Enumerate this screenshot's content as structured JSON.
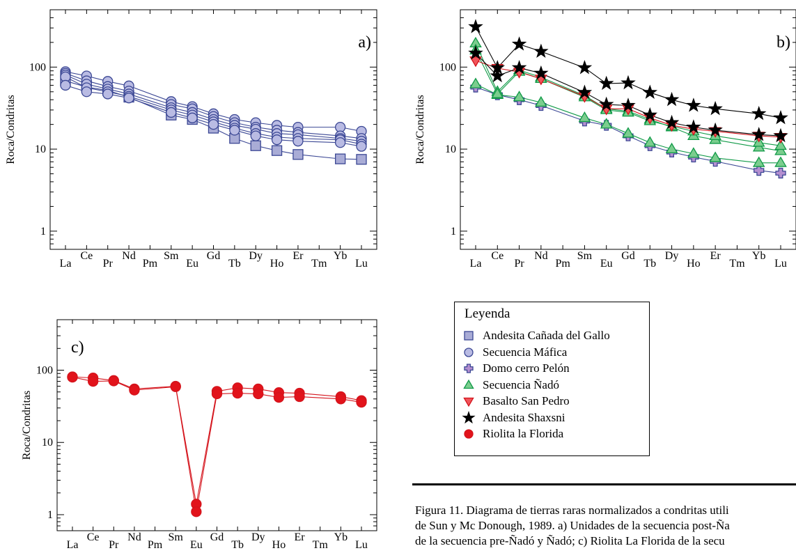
{
  "elements": [
    "La",
    "Ce",
    "Pr",
    "Nd",
    "Pm",
    "Sm",
    "Eu",
    "Gd",
    "Tb",
    "Dy",
    "Ho",
    "Er",
    "Tm",
    "Yb",
    "Lu"
  ],
  "colors": {
    "andesita_canada": "#a9acd6",
    "secuencia_mafica": "#b9bbe3",
    "domo_pelon": "#b48fd0",
    "nado": "#7bcd8e",
    "basalto": "#f0545a",
    "shaxsni": "#000000",
    "riolita": "#e2131b",
    "line_blue": "#3b4794",
    "line_green": "#109a47",
    "line_red": "#d4141c",
    "line_black": "#000000"
  },
  "chart_data": [
    {
      "type": "line",
      "panel_label": "a)",
      "ylabel": "Roca/Condritas",
      "yscale": "log",
      "ylim": [
        0.6,
        500
      ],
      "yticks": [
        1,
        10,
        100
      ],
      "series": [
        {
          "name": "Andesita Cañada del Gallo",
          "marker": "square",
          "color": "andesita_canada",
          "line": "line_blue",
          "values": [
            68,
            57,
            52,
            43,
            null,
            26,
            23,
            18,
            13.5,
            11,
            9.6,
            8.6,
            null,
            7.6,
            7.5
          ]
        },
        {
          "name": "Secuencia Máfica",
          "marker": "circle",
          "color": "secuencia_mafica",
          "line": "line_blue",
          "values": [
            88,
            78,
            67,
            59,
            null,
            38,
            33,
            27,
            23,
            21,
            19.5,
            18.5,
            null,
            18.5,
            16.5
          ]
        },
        {
          "name": "Secuencia Máfica",
          "marker": "circle",
          "color": "secuencia_mafica",
          "line": "line_blue",
          "values": [
            84,
            68,
            58,
            51,
            null,
            35,
            31,
            25,
            21,
            18.5,
            17,
            16,
            null,
            14.5,
            13.5
          ]
        },
        {
          "name": "Secuencia Máfica",
          "marker": "circle",
          "color": "secuencia_mafica",
          "line": "line_blue",
          "values": [
            80,
            62,
            54,
            47,
            null,
            32,
            28,
            23,
            19.5,
            17.5,
            15.5,
            15,
            null,
            13.5,
            12.5
          ]
        },
        {
          "name": "Secuencia Máfica",
          "marker": "circle",
          "color": "secuencia_mafica",
          "line": "line_blue",
          "values": [
            76,
            56,
            50,
            44,
            null,
            30,
            26,
            21.5,
            18,
            15.5,
            14,
            13.5,
            null,
            13,
            11.5
          ]
        },
        {
          "name": "Secuencia Máfica",
          "marker": "circle",
          "color": "secuencia_mafica",
          "line": "line_blue",
          "values": [
            60,
            50,
            47,
            42,
            null,
            28,
            24,
            20,
            17,
            14.5,
            13,
            12.5,
            null,
            12,
            10.8
          ]
        }
      ]
    },
    {
      "type": "line",
      "panel_label": "b)",
      "ylabel": "Roca/Condritas",
      "yscale": "log",
      "ylim": [
        0.6,
        500
      ],
      "yticks": [
        1,
        10,
        100
      ],
      "series": [
        {
          "name": "Domo cerro Pelón",
          "marker": "plus",
          "color": "domo_pelon",
          "line": "line_blue",
          "values": [
            57,
            46,
            40,
            34,
            null,
            22,
            19.5,
            14.5,
            11,
            9.2,
            8,
            7.1,
            null,
            5.5,
            5.1
          ]
        },
        {
          "name": "Secuencia Ñadó",
          "marker": "triangle-up",
          "color": "nado",
          "line": "line_green",
          "values": [
            62,
            46,
            43,
            37,
            null,
            24,
            20,
            15.5,
            12,
            10,
            8.8,
            7.8,
            null,
            6.8,
            6.8
          ]
        },
        {
          "name": "Secuencia Ñadó",
          "marker": "triangle-up",
          "color": "nado",
          "line": "line_green",
          "values": [
            195,
            50,
            92,
            75,
            null,
            45,
            31,
            29,
            23,
            18.5,
            14.5,
            13,
            null,
            10.5,
            9.5
          ]
        },
        {
          "name": "Secuencia Ñadó",
          "marker": "triangle-up",
          "color": "nado",
          "line": "line_green",
          "values": [
            160,
            47,
            88,
            72,
            null,
            43,
            30,
            28,
            22,
            19,
            16.5,
            14.5,
            null,
            12,
            11
          ]
        },
        {
          "name": "Basalto San Pedro",
          "marker": "triangle-down",
          "color": "basalto",
          "line": "line_red",
          "values": [
            120,
            97,
            87,
            72,
            null,
            44,
            31,
            31,
            24,
            19.5,
            17.5,
            16.5,
            null,
            14.5,
            14
          ]
        },
        {
          "name": "Andesita Shaxsni",
          "marker": "star",
          "color": "shaxsni",
          "line": "line_black",
          "values": [
            310,
            98,
            190,
            155,
            null,
            98,
            63,
            64,
            49,
            40,
            34,
            31,
            null,
            27,
            24
          ]
        },
        {
          "name": "Andesita Shaxsni",
          "marker": "star",
          "color": "shaxsni",
          "line": "line_black",
          "values": [
            148,
            78,
            98,
            84,
            null,
            49,
            35,
            34,
            26,
            21,
            18.5,
            17,
            null,
            15,
            14.5
          ]
        }
      ]
    },
    {
      "type": "line",
      "panel_label": "c)",
      "ylabel": "Roca/Condritas",
      "yscale": "log",
      "ylim": [
        0.6,
        500
      ],
      "yticks": [
        1,
        10,
        100
      ],
      "series": [
        {
          "name": "Riolita la Florida",
          "marker": "circle",
          "color": "riolita",
          "line": "line_red",
          "values": [
            81,
            78,
            72,
            55,
            null,
            60,
            1.4,
            51,
            57,
            55,
            49,
            48,
            null,
            43,
            38
          ]
        },
        {
          "name": "Riolita la Florida",
          "marker": "circle",
          "color": "riolita",
          "line": "line_red",
          "values": [
            80,
            70,
            71,
            53,
            null,
            59,
            1.1,
            47,
            48,
            47,
            42,
            43,
            null,
            40,
            36
          ]
        }
      ]
    }
  ],
  "legend": {
    "title": "Leyenda",
    "items": [
      {
        "label": "Andesita Cañada del Gallo",
        "marker": "square",
        "color": "andesita_canada",
        "stroke": "line_blue"
      },
      {
        "label": "Secuencia Máfica",
        "marker": "circle",
        "color": "secuencia_mafica",
        "stroke": "line_blue"
      },
      {
        "label": "Domo cerro Pelón",
        "marker": "plus",
        "color": "domo_pelon",
        "stroke": "line_blue"
      },
      {
        "label": "Secuencia Ñadó",
        "marker": "triangle-up",
        "color": "nado",
        "stroke": "line_green"
      },
      {
        "label": "Basalto San Pedro",
        "marker": "triangle-down",
        "color": "basalto",
        "stroke": "line_red"
      },
      {
        "label": "Andesita Shaxsni",
        "marker": "star",
        "color": "shaxsni",
        "stroke": "line_black"
      },
      {
        "label": "Riolita la Florida",
        "marker": "circle",
        "color": "riolita",
        "stroke": "line_red"
      }
    ]
  },
  "caption": {
    "line1": "Figura 11. Diagrama de tierras raras normalizados a condritas utili",
    "line2": "de Sun y Mc Donough, 1989. a) Unidades de la secuencia post-Ña",
    "line3": "de la secuencia pre-Ñadó y Ñadó; c) Riolita La Florida de la secu"
  }
}
